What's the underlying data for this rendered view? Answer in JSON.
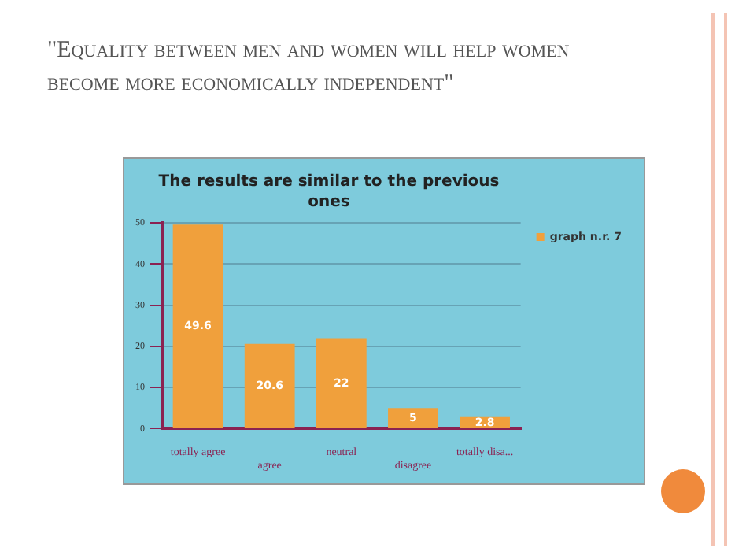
{
  "chart_data": {
    "type": "bar",
    "title": "\"Equality between men and women will help women become more economically independent\"",
    "subtitle": "The results are similar to the previous ones",
    "categories": [
      "totally agree",
      "agree",
      "neutral",
      "disagree",
      "totally disa..."
    ],
    "series": [
      {
        "name": "graph n.r. 7",
        "color": "#f0a03c",
        "values": [
          49.6,
          20.6,
          22,
          5,
          2.8
        ]
      }
    ],
    "ylim": [
      0,
      50
    ],
    "yticks": [
      0,
      10,
      20,
      30,
      40,
      50
    ],
    "grid": "y",
    "legend": "top right",
    "data_labels": true
  }
}
